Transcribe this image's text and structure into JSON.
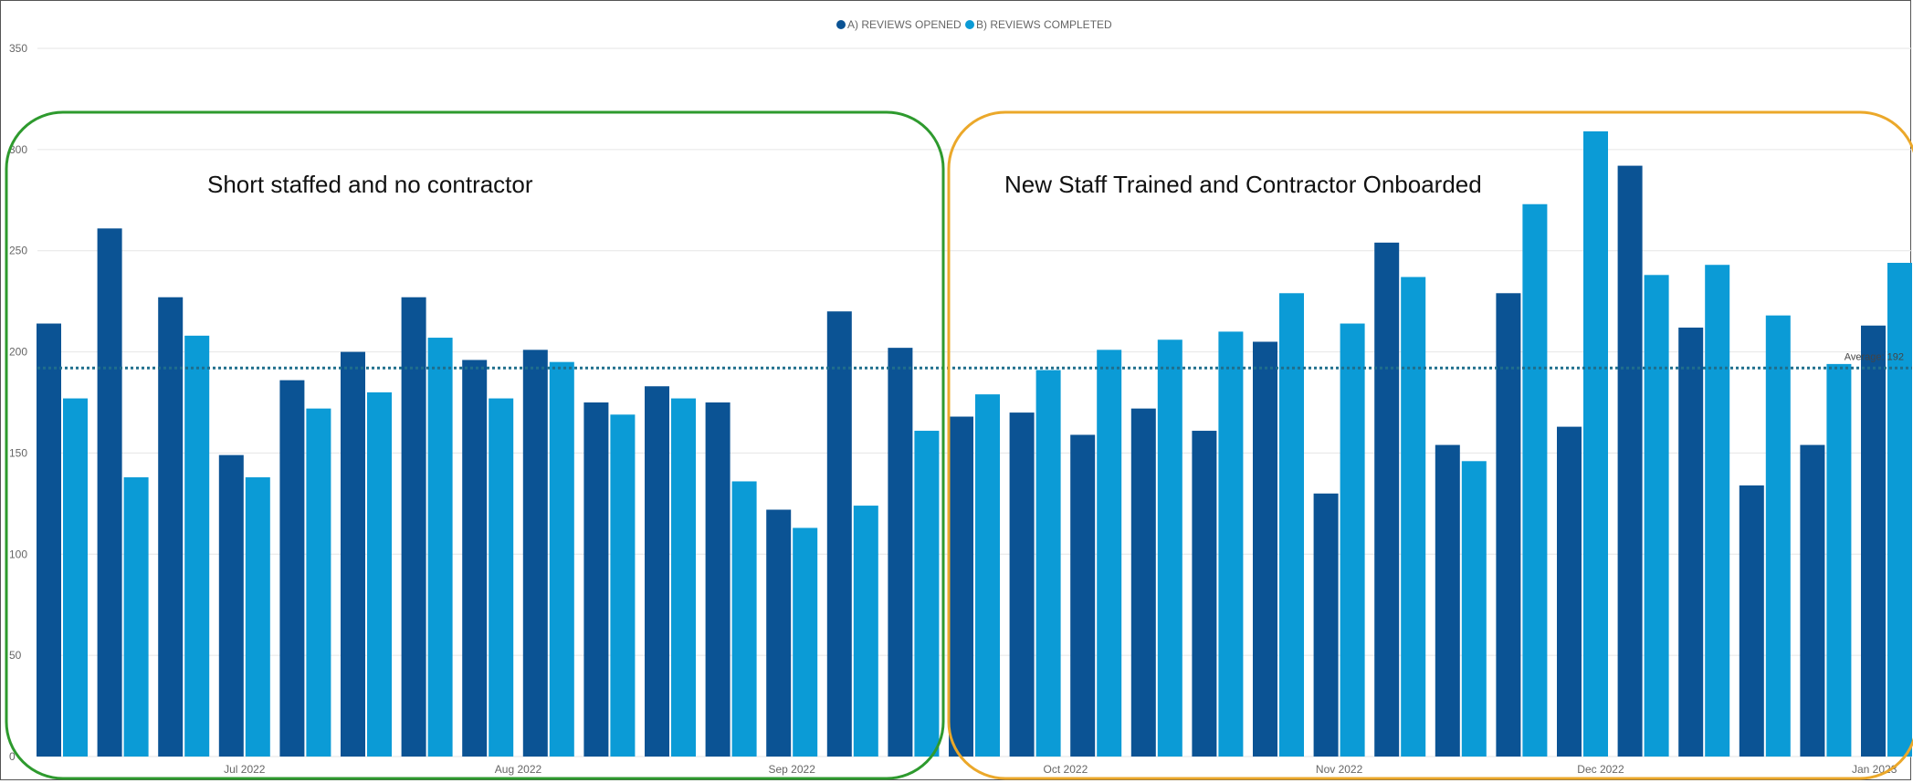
{
  "chart_data": {
    "type": "bar",
    "legend_position": "top-center",
    "grid": true,
    "ylim": [
      0,
      350
    ],
    "y_ticks": [
      "0",
      "50",
      "100",
      "150",
      "200",
      "250",
      "300",
      "350"
    ],
    "x_tick_labels": [
      "Jul 2022",
      "Aug 2022",
      "Sep 2022",
      "Oct 2022",
      "Nov 2022",
      "Dec 2022",
      "Jan 2023"
    ],
    "x_tick_positions": [
      3,
      7.5,
      12,
      16.5,
      21,
      25.3,
      29.8
    ],
    "series": [
      {
        "name": "A) REVIEWS OPENED",
        "color": "#0B5394",
        "values": [
          214,
          261,
          227,
          149,
          186,
          200,
          227,
          196,
          201,
          175,
          183,
          175,
          122,
          220,
          202,
          168,
          170,
          159,
          172,
          161,
          205,
          130,
          254,
          154,
          229,
          163,
          292,
          212,
          134,
          154,
          213
        ]
      },
      {
        "name": "B) REVIEWS COMPLETED",
        "color": "#0B9BD6",
        "values": [
          177,
          138,
          208,
          138,
          172,
          180,
          207,
          177,
          195,
          169,
          177,
          136,
          113,
          124,
          161,
          179,
          191,
          201,
          206,
          210,
          229,
          214,
          237,
          146,
          273,
          309,
          238,
          243,
          218,
          194,
          244
        ]
      }
    ],
    "reference_line": {
      "label": "Average: 192",
      "value": 192,
      "color": "#1F6E8C"
    },
    "annotations": [
      {
        "text": "Short staffed and no contractor",
        "color": "#2E9A2E",
        "from_bar": 0,
        "to_bar": 14
      },
      {
        "text": "New Staff Trained and Contractor Onboarded",
        "color": "#EBA82A",
        "from_bar": 15,
        "to_bar": 30
      }
    ]
  }
}
